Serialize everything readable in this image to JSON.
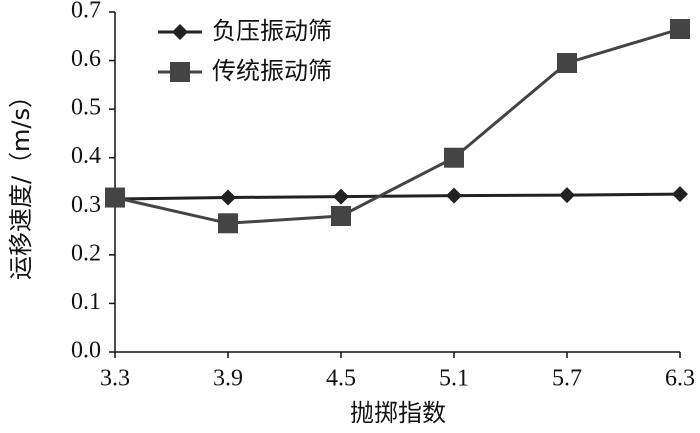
{
  "chart_data": {
    "type": "line",
    "x_label": "抛掷指数",
    "y_label": "运移速度/（m/s）",
    "x": [
      3.3,
      3.9,
      4.5,
      5.1,
      5.7,
      6.3
    ],
    "xlim": [
      3.3,
      6.3
    ],
    "xticks": [
      3.3,
      3.9,
      4.5,
      5.1,
      5.7,
      6.3
    ],
    "ylim": [
      0,
      0.7
    ],
    "yticks": [
      {
        "value": 0,
        "label": "0.0"
      },
      0.1,
      0.2,
      0.3,
      0.4,
      0.5,
      0.6,
      0.7
    ],
    "legend": "upper left",
    "series": [
      {
        "name": "负压振动筛",
        "color": "#222222",
        "marker": "diamond",
        "values": [
          0.315,
          0.318,
          0.32,
          0.322,
          0.323,
          0.325
        ]
      },
      {
        "name": "传统振动筛",
        "color": "#444444",
        "marker": "square",
        "values": [
          0.318,
          0.265,
          0.28,
          0.4,
          0.595,
          0.665
        ]
      }
    ]
  }
}
